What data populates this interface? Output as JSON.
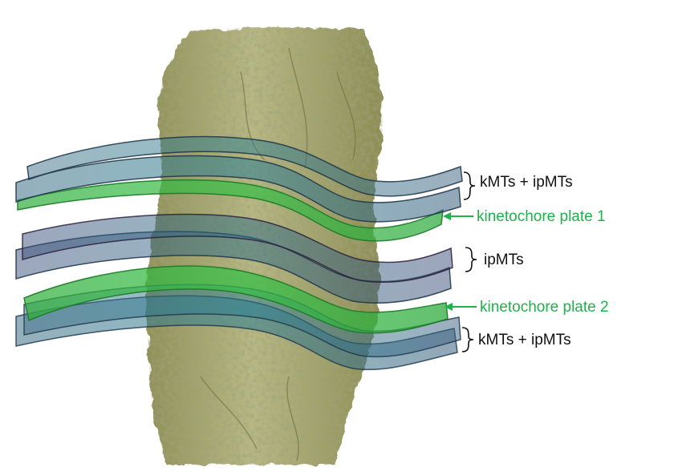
{
  "labels": {
    "top_bundle": "kMTs + ipMTs",
    "plate1": "kinetochore plate 1",
    "middle_bundle": "ipMTs",
    "plate2": "kinetochore plate 2",
    "bottom_bundle": "kMTs + ipMTs"
  },
  "colors": {
    "chromosome": "#b2b37c",
    "kinetochore_plate": "#2fb838",
    "mt_sheet": "#2f6b80",
    "mt_sheet_dark": "#1b3346",
    "label_text": "#111111",
    "label_green": "#1db34a"
  }
}
